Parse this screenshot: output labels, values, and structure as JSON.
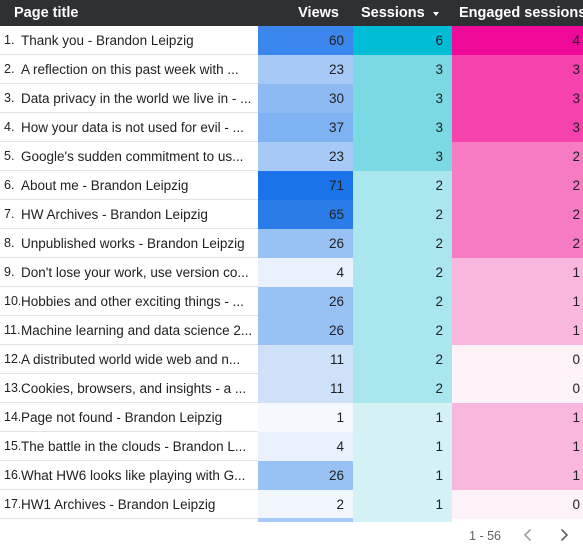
{
  "headers": {
    "page_title": "Page title",
    "views": "Views",
    "sessions": "Sessions",
    "engaged_sessions": "Engaged sessions"
  },
  "sort_icon": "caret-down-icon",
  "rows": [
    {
      "index": "1.",
      "title": "Thank you - Brandon Leipzig",
      "views": "60",
      "sessions": "6",
      "engaged": "4"
    },
    {
      "index": "2.",
      "title": "A reflection on this past week with ...",
      "views": "23",
      "sessions": "3",
      "engaged": "3"
    },
    {
      "index": "3.",
      "title": "Data privacy in the world we live in - ...",
      "views": "30",
      "sessions": "3",
      "engaged": "3"
    },
    {
      "index": "4.",
      "title": "How your data is not used for evil - ...",
      "views": "37",
      "sessions": "3",
      "engaged": "3"
    },
    {
      "index": "5.",
      "title": "Google's sudden commitment to us...",
      "views": "23",
      "sessions": "3",
      "engaged": "2"
    },
    {
      "index": "6.",
      "title": "About me - Brandon Leipzig",
      "views": "71",
      "sessions": "2",
      "engaged": "2"
    },
    {
      "index": "7.",
      "title": "HW Archives - Brandon Leipzig",
      "views": "65",
      "sessions": "2",
      "engaged": "2"
    },
    {
      "index": "8.",
      "title": "Unpublished works - Brandon Leipzig",
      "views": "26",
      "sessions": "2",
      "engaged": "2"
    },
    {
      "index": "9.",
      "title": "Don't lose your work, use version co...",
      "views": "4",
      "sessions": "2",
      "engaged": "1"
    },
    {
      "index": "10.",
      "title": "Hobbies and other exciting things - ...",
      "views": "26",
      "sessions": "2",
      "engaged": "1"
    },
    {
      "index": "11.",
      "title": "Machine learning and data science 2...",
      "views": "26",
      "sessions": "2",
      "engaged": "1"
    },
    {
      "index": "12.",
      "title": "A distributed world wide web and n...",
      "views": "11",
      "sessions": "2",
      "engaged": "0"
    },
    {
      "index": "13.",
      "title": "Cookies, browsers, and insights - a ...",
      "views": "11",
      "sessions": "2",
      "engaged": "0"
    },
    {
      "index": "14.",
      "title": "Page not found - Brandon Leipzig",
      "views": "1",
      "sessions": "1",
      "engaged": "1"
    },
    {
      "index": "15.",
      "title": "The battle in the clouds - Brandon L...",
      "views": "4",
      "sessions": "1",
      "engaged": "1"
    },
    {
      "index": "16.",
      "title": "What HW6 looks like playing with G...",
      "views": "26",
      "sessions": "1",
      "engaged": "1"
    },
    {
      "index": "17.",
      "title": "HW1 Archives - Brandon Leipzig",
      "views": "2",
      "sessions": "1",
      "engaged": "0"
    }
  ],
  "heatmap_colors": {
    "views": {
      "71": "#1a73e8",
      "65": "#2a7de9",
      "60": "#3a86ec",
      "37": "#7eb2f2",
      "30": "#8dbaf3",
      "26": "#99c2f4",
      "23": "#a6c9f5",
      "11": "#cfe1f9",
      "4": "#e9f1fc",
      "2": "#f1f6fd",
      "1": "#f5f9fe"
    },
    "sessions": {
      "6": "#00bcd4",
      "3": "#7ad9e3",
      "2": "#aae6ee",
      "1": "#d4f2f6"
    },
    "engaged": {
      "4": "#f00a99",
      "3": "#f542ac",
      "2": "#f77bc3",
      "1": "#fab7dd",
      "0": "#fdf2f8"
    }
  },
  "pager": {
    "label": "1 - 56",
    "prev_icon": "chevron-left-icon",
    "next_icon": "chevron-right-icon"
  }
}
